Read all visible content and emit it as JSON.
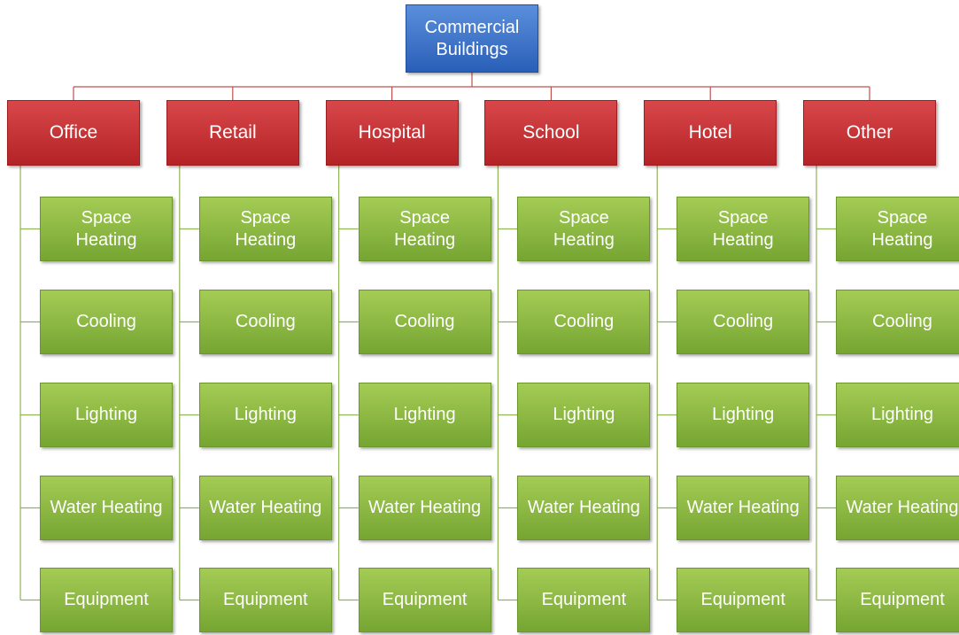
{
  "root": {
    "label": "Commercial Buildings"
  },
  "categories": [
    {
      "label": "Office",
      "children": [
        "Space Heating",
        "Cooling",
        "Lighting",
        "Water Heating",
        "Equipment"
      ]
    },
    {
      "label": "Retail",
      "children": [
        "Space Heating",
        "Cooling",
        "Lighting",
        "Water Heating",
        "Equipment"
      ]
    },
    {
      "label": "Hospital",
      "children": [
        "Space Heating",
        "Cooling",
        "Lighting",
        "Water Heating",
        "Equipment"
      ]
    },
    {
      "label": "School",
      "children": [
        "Space Heating",
        "Cooling",
        "Lighting",
        "Water Heating",
        "Equipment"
      ]
    },
    {
      "label": "Hotel",
      "children": [
        "Space Heating",
        "Cooling",
        "Lighting",
        "Water Heating",
        "Equipment"
      ]
    },
    {
      "label": "Other",
      "children": [
        "Space Heating",
        "Cooling",
        "Lighting",
        "Water Heating",
        "Equipment"
      ]
    }
  ]
}
